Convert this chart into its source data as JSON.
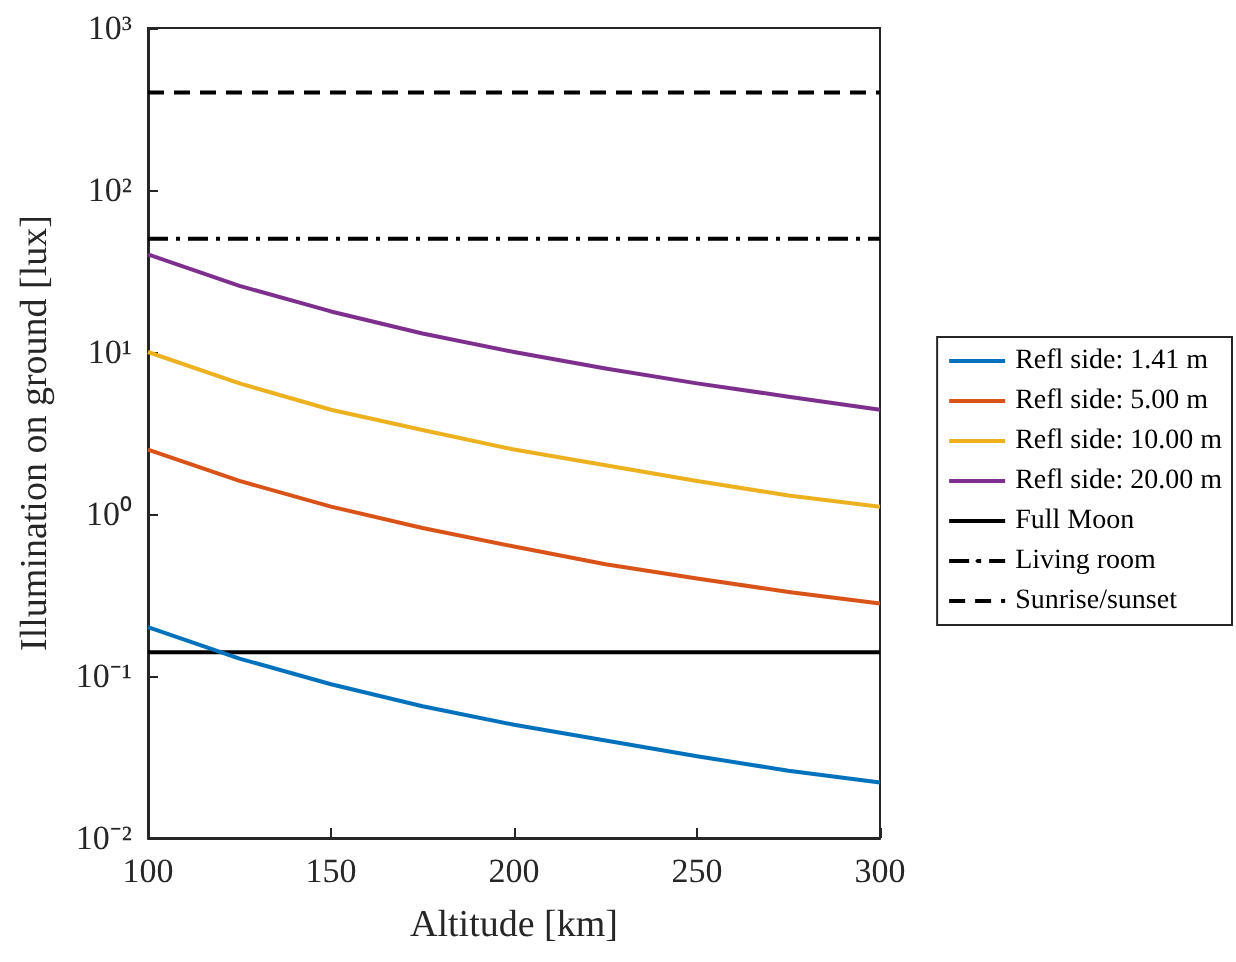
{
  "chart_data": {
    "type": "line",
    "xlabel": "Altitude [km]",
    "ylabel": "Illumination on ground [lux]",
    "x": [
      100,
      125,
      150,
      175,
      200,
      225,
      250,
      275,
      300
    ],
    "series": [
      {
        "name": "Refl side: 1.41 m",
        "color": "#0072bd",
        "values": [
          0.2,
          0.128,
          0.089,
          0.065,
          0.05,
          0.04,
          0.032,
          0.026,
          0.022
        ]
      },
      {
        "name": "Refl side: 5.00 m",
        "color": "#d95319",
        "values": [
          2.5,
          1.6,
          1.11,
          0.82,
          0.63,
          0.49,
          0.4,
          0.33,
          0.28
        ]
      },
      {
        "name": "Refl side: 10.00 m",
        "color": "#edb120",
        "values": [
          10,
          6.4,
          4.4,
          3.3,
          2.5,
          2.0,
          1.6,
          1.3,
          1.11
        ]
      },
      {
        "name": "Refl side: 20.00 m",
        "color": "#7e2f8e",
        "values": [
          40,
          25.6,
          17.8,
          13,
          10,
          7.9,
          6.4,
          5.3,
          4.4
        ]
      }
    ],
    "ref_lines": [
      {
        "axis": "y",
        "value": 0.14,
        "label": "Full Moon",
        "color": "#000000",
        "line_style": "solid"
      },
      {
        "axis": "y",
        "value": 50,
        "label": "Living room",
        "color": "#000000",
        "line_style": "dashdot"
      },
      {
        "axis": "y",
        "value": 400,
        "label": "Sunrise/sunset",
        "color": "#000000",
        "line_style": "dashed"
      }
    ],
    "xlim": [
      100,
      300
    ],
    "xticks": [
      100,
      150,
      200,
      250,
      300
    ],
    "ylim": [
      0.01,
      1000
    ],
    "log": "y",
    "yticks": [
      {
        "value": 0.01,
        "label": "10⁻²"
      },
      {
        "value": 0.1,
        "label": "10⁻¹"
      },
      {
        "value": 1,
        "label": "10⁰"
      },
      {
        "value": 10,
        "label": "10¹"
      },
      {
        "value": 100,
        "label": "10²"
      },
      {
        "value": 1000,
        "label": "10³"
      }
    ],
    "grid": false,
    "legend": "right",
    "marker": "none",
    "line_style": "solid"
  }
}
